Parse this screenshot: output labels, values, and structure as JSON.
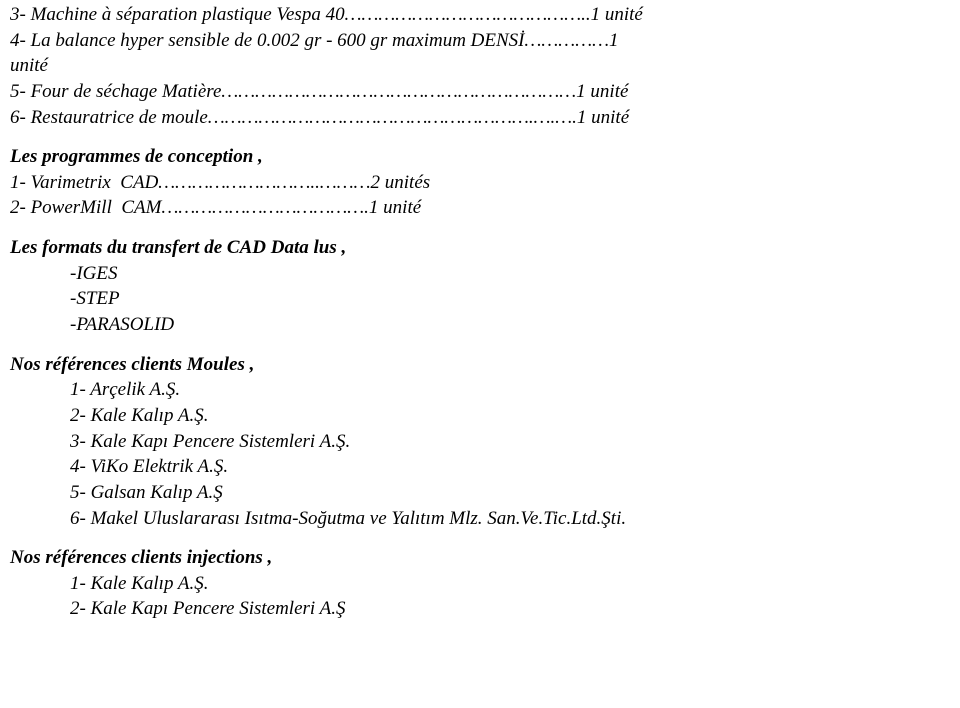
{
  "equip": {
    "l3": "3- Machine à séparation plastique Vespa 40……………………………………..1 unité",
    "l4a": "4- La balance hyper sensible de 0.002 gr - 600 gr maximum DENSİ……………1",
    "l4b": "unité",
    "l5": "5- Four de séchage Matière………………………………………………………1 unité",
    "l6": "6- Restauratrice de moule………………………………………………….….….1 unité"
  },
  "programs": {
    "title": "Les programmes de conception ,",
    "l1": "1- Varimetrix  CAD………………………..………2 unités",
    "l2": "2- PowerMill  CAM……………………………….1 unité"
  },
  "formats": {
    "title": "Les formats du transfert de CAD Data lus ,",
    "i1": "-IGES",
    "i2": "-STEP",
    "i3": "-PARASOLID"
  },
  "refsMoules": {
    "title": "Nos références clients Moules ,",
    "i1": "1- Arçelik A.Ş.",
    "i2": "2- Kale Kalıp A.Ş.",
    "i3": "3- Kale Kapı Pencere Sistemleri A.Ş.",
    "i4": "4- ViKo Elektrik A.Ş.",
    "i5": "5- Galsan Kalıp A.Ş",
    "i6": "6- Makel Uluslararası Isıtma-Soğutma ve Yalıtım Mlz. San.Ve.Tic.Ltd.Şti."
  },
  "refsInj": {
    "title": "Nos références clients injections ,",
    "i1": "1- Kale Kalıp A.Ş.",
    "i2": "2- Kale Kapı Pencere Sistemleri A.Ş"
  }
}
